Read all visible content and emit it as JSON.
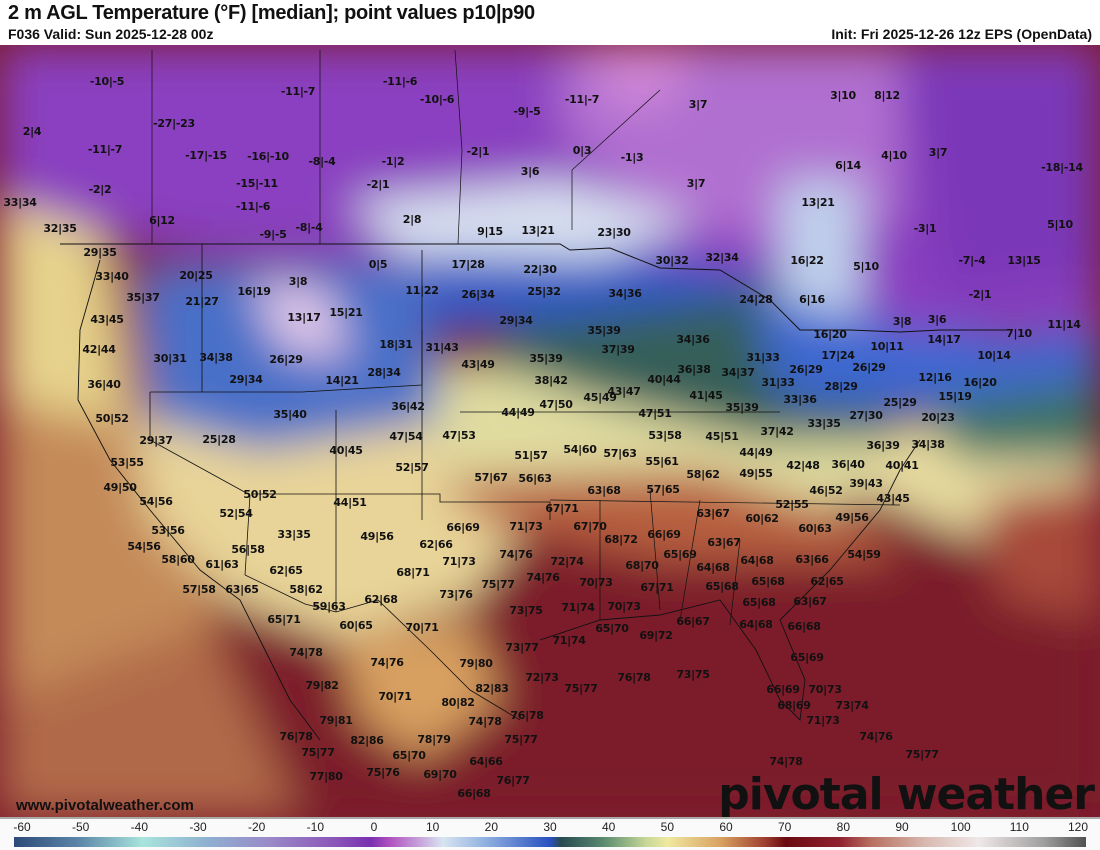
{
  "header": {
    "title": "2 m AGL Temperature (°F) [median]; point values p10|p90",
    "valid": "F036 Valid: Sun 2025-12-28 00z",
    "init": "Init: Fri 2025-12-26 12z EPS (OpenData)"
  },
  "footer": {
    "url": "www.pivotalweather.com",
    "logo": "pivotal weather"
  },
  "colorbar": {
    "units": "°F",
    "ticks": [
      "-60",
      "-50",
      "-40",
      "-30",
      "-20",
      "-10",
      "0",
      "10",
      "20",
      "30",
      "40",
      "50",
      "60",
      "70",
      "80",
      "90",
      "100",
      "110",
      "120"
    ]
  },
  "point_values": [
    "-10|-5",
    "-11|-7",
    "-11|-6",
    "-10|-6",
    "-9|-5",
    "-11|-7",
    "3|7",
    "3|10",
    "8|12",
    "2|4",
    "-27|-23",
    "-11|-7",
    "-17|-15",
    "-16|-10",
    "-8|-4",
    "-1|2",
    "-2|1",
    "0|3",
    "-1|3",
    "4|10",
    "3|7",
    "-18|-14",
    "3|6",
    "6|14",
    "-15|-11",
    "-2|2",
    "-2|1",
    "3|7",
    "13|21",
    "33|34",
    "-11|-6",
    "6|12",
    "2|8",
    "-8|-4",
    "-9|-5",
    "32|35",
    "9|15",
    "13|21",
    "23|30",
    "-3|1",
    "5|10",
    "29|35",
    "16|22",
    "5|10",
    "-7|-4",
    "13|15",
    "0|5",
    "17|28",
    "22|30",
    "30|32",
    "32|34",
    "33|40",
    "20|25",
    "3|8",
    "16|19",
    "11|22",
    "26|34",
    "25|32",
    "34|36",
    "24|28",
    "6|16",
    "-2|1",
    "35|37",
    "21|27",
    "13|17",
    "15|21",
    "29|34",
    "43|45",
    "3|8",
    "3|6",
    "11|14",
    "35|39",
    "16|20",
    "7|10",
    "14|17",
    "18|31",
    "31|43",
    "42|44",
    "30|31",
    "34|38",
    "26|29",
    "34|36",
    "37|39",
    "10|11",
    "17|24",
    "10|14",
    "31|33",
    "43|49",
    "35|39",
    "14|21",
    "28|34",
    "29|34",
    "36|40",
    "36|38",
    "34|37",
    "26|29",
    "26|29",
    "12|16",
    "16|20",
    "38|42",
    "40|44",
    "43|47",
    "41|45",
    "31|33",
    "28|29",
    "35|39",
    "33|36",
    "45|49",
    "47|50",
    "15|19",
    "25|29",
    "50|52",
    "35|40",
    "36|42",
    "44|49",
    "47|51",
    "27|30",
    "20|23",
    "33|35",
    "37|42",
    "29|37",
    "25|28",
    "47|54",
    "47|53",
    "53|58",
    "45|51",
    "36|39",
    "34|38",
    "40|45",
    "54|60",
    "57|63",
    "44|49",
    "55|61",
    "51|57",
    "53|55",
    "52|57",
    "42|48",
    "36|40",
    "40|41",
    "58|62",
    "49|55",
    "57|67",
    "56|63",
    "49|50",
    "63|68",
    "57|65",
    "39|43",
    "46|52",
    "43|45",
    "50|52",
    "44|51",
    "54|56",
    "52|55",
    "63|67",
    "60|62",
    "52|54",
    "66|69",
    "67|71",
    "71|73",
    "67|70",
    "49|56",
    "53|56",
    "33|35",
    "49|56",
    "62|66",
    "66|69",
    "68|72",
    "63|67",
    "60|63",
    "54|56",
    "56|58",
    "65|69",
    "54|59",
    "58|60",
    "61|63",
    "62|65",
    "74|76",
    "72|74",
    "64|68",
    "64|68",
    "68|71",
    "71|73",
    "63|66",
    "57|58",
    "63|65",
    "58|62",
    "74|76",
    "70|73",
    "68|70",
    "67|71",
    "65|68",
    "65|68",
    "62|65",
    "73|76",
    "75|77",
    "62|68",
    "59|63",
    "63|67",
    "65|68",
    "71|74",
    "70|73",
    "73|75",
    "65|71",
    "60|65",
    "70|71",
    "66|67",
    "69|72",
    "64|68",
    "66|68",
    "71|74",
    "65|70",
    "73|77",
    "74|78",
    "74|76",
    "79|80",
    "65|69",
    "76|78",
    "73|75",
    "75|77",
    "72|73",
    "79|82",
    "82|83",
    "66|69",
    "70|73",
    "73|74",
    "68|69",
    "71|73",
    "74|76",
    "75|77",
    "74|78",
    "70|71",
    "80|82",
    "79|81",
    "78|79",
    "74|78",
    "76|78",
    "76|78",
    "82|86",
    "75|77",
    "75|77",
    "65|70",
    "64|66",
    "75|76",
    "69|70",
    "76|77",
    "77|80",
    "66|68"
  ]
}
